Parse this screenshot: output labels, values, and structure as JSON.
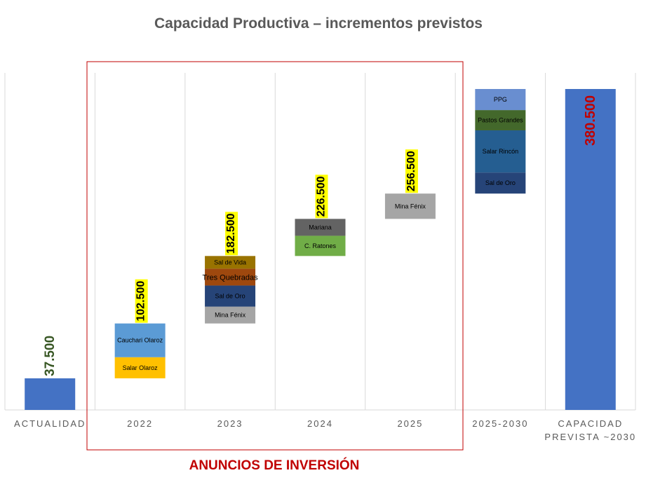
{
  "chart_data": {
    "type": "bar",
    "subtype": "waterfall",
    "title": "Capacidad Productiva – incrementos previstos",
    "categories": [
      "ACTUALIDAD",
      "2022",
      "2023",
      "2024",
      "2025",
      "2025-2030",
      "CAPACIDAD PREVISTA ~2030"
    ],
    "ylim": [
      0,
      380500
    ],
    "grid": "vertical",
    "bars": [
      {
        "category": "ACTUALIDAD",
        "base": 0,
        "total_label": "37.500",
        "total": 37500,
        "total_color": "#375623",
        "segments": [
          {
            "name": "",
            "value": 37500,
            "color": "#4472c4"
          }
        ]
      },
      {
        "category": "2022",
        "base": 37500,
        "total_label": "102.500",
        "total": 102500,
        "total_highlight": "#ffff00",
        "segments": [
          {
            "name": "Salar Olaroz",
            "value": 25000,
            "color": "#ffc000"
          },
          {
            "name": "Cauchari Olaroz",
            "value": 40000,
            "color": "#5b9bd5"
          }
        ]
      },
      {
        "category": "2023",
        "base": 102500,
        "total_label": "182.500",
        "total": 182500,
        "total_highlight": "#ffff00",
        "segments": [
          {
            "name": "Mina Fénix",
            "value": 20000,
            "color": "#a5a5a5"
          },
          {
            "name": "Sal de Oro",
            "value": 25000,
            "color": "#264478"
          },
          {
            "name": "Tres Quebradas",
            "value": 20000,
            "color": "#9e480e"
          },
          {
            "name": "Sal de Vida",
            "value": 15000,
            "color": "#997300"
          }
        ]
      },
      {
        "category": "2024",
        "base": 182500,
        "total_label": "226.500",
        "total": 226500,
        "total_highlight": "#ffff00",
        "segments": [
          {
            "name": "C. Ratones",
            "value": 24000,
            "color": "#70ad47"
          },
          {
            "name": "Mariana",
            "value": 20000,
            "color": "#636363"
          }
        ]
      },
      {
        "category": "2025",
        "base": 226500,
        "total_label": "256.500",
        "total": 256500,
        "total_highlight": "#ffff00",
        "segments": [
          {
            "name": "Mina Fénix",
            "value": 30000,
            "color": "#a5a5a5"
          }
        ]
      },
      {
        "category": "2025-2030",
        "base": 256500,
        "segments": [
          {
            "name": "Sal de Oro",
            "value": 25000,
            "color": "#264478"
          },
          {
            "name": "Salar Rincón",
            "value": 50000,
            "color": "#255e91"
          },
          {
            "name": "Pastos Grandes",
            "value": 24000,
            "color": "#43682b"
          },
          {
            "name": "PPG",
            "value": 25000,
            "color": "#698ed0"
          }
        ]
      },
      {
        "category": "CAPACIDAD PREVISTA ~2030",
        "base": 0,
        "total_label": "380.500",
        "total": 380500,
        "total_color": "#c00000",
        "segments": [
          {
            "name": "",
            "value": 380500,
            "color": "#4472c4"
          }
        ]
      }
    ],
    "annotation": "ANUNCIOS DE INVERSIÓN"
  }
}
